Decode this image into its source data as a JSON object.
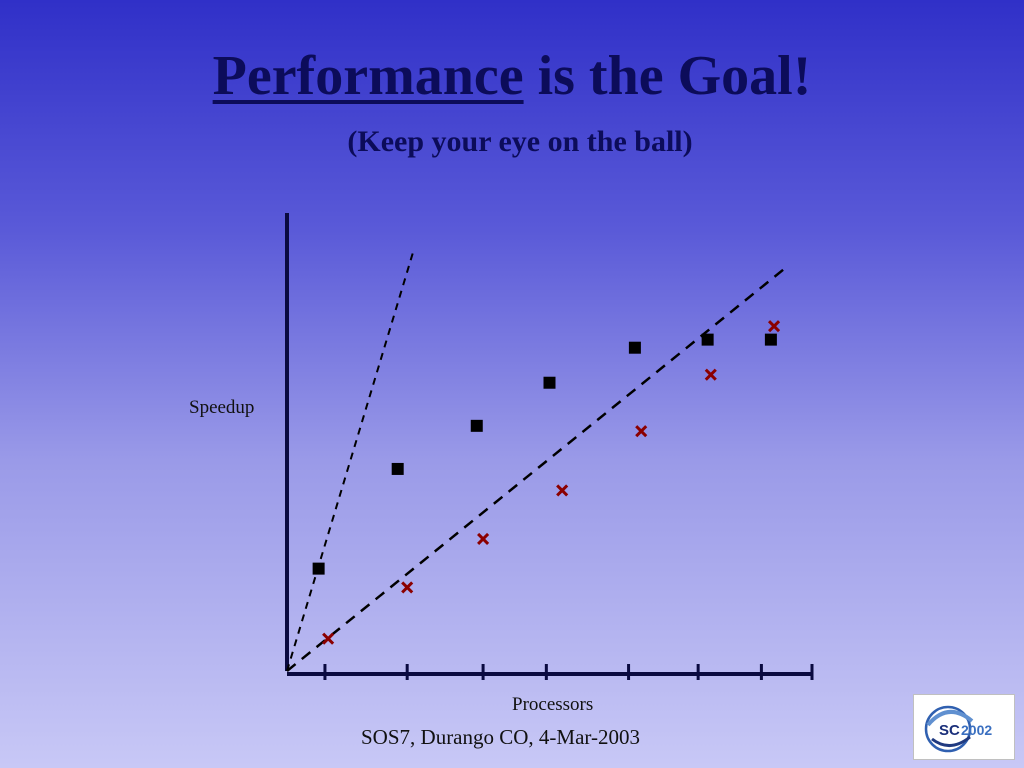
{
  "slide": {
    "title_underlined": "Performance",
    "title_rest": " is the Goal!",
    "subtitle": "(Keep your eye on the ball)",
    "footer": "SOS7, Durango CO, 4-Mar-2003",
    "logo_text_sc": "SC",
    "logo_text_year": "2002"
  },
  "chart_data": {
    "type": "scatter",
    "xlabel": "Processors",
    "ylabel": "Speedup",
    "xlim": [
      0,
      8.3
    ],
    "ylim": [
      0,
      8.5
    ],
    "grid": false,
    "x_ticks": [
      0.6,
      1.9,
      3.1,
      4.1,
      5.4,
      6.5,
      7.5
    ],
    "series": [
      {
        "marker": "square",
        "color": "#000000",
        "x": [
          0.5,
          1.75,
          3.0,
          4.15,
          5.5,
          6.65,
          7.65
        ],
        "y": [
          1.9,
          3.75,
          4.55,
          5.35,
          6.0,
          6.15,
          6.15
        ]
      },
      {
        "marker": "x",
        "color": "#8b0000",
        "x": [
          0.65,
          1.9,
          3.1,
          4.35,
          5.6,
          6.7,
          7.7
        ],
        "y": [
          0.6,
          1.55,
          2.45,
          3.35,
          4.45,
          5.5,
          6.4
        ]
      }
    ],
    "reference_lines": [
      {
        "style": "dashed",
        "x": [
          0,
          2.0
        ],
        "y": [
          0,
          7.8
        ]
      },
      {
        "style": "dashed",
        "x": [
          0,
          7.9
        ],
        "y": [
          0,
          7.5
        ]
      }
    ]
  }
}
